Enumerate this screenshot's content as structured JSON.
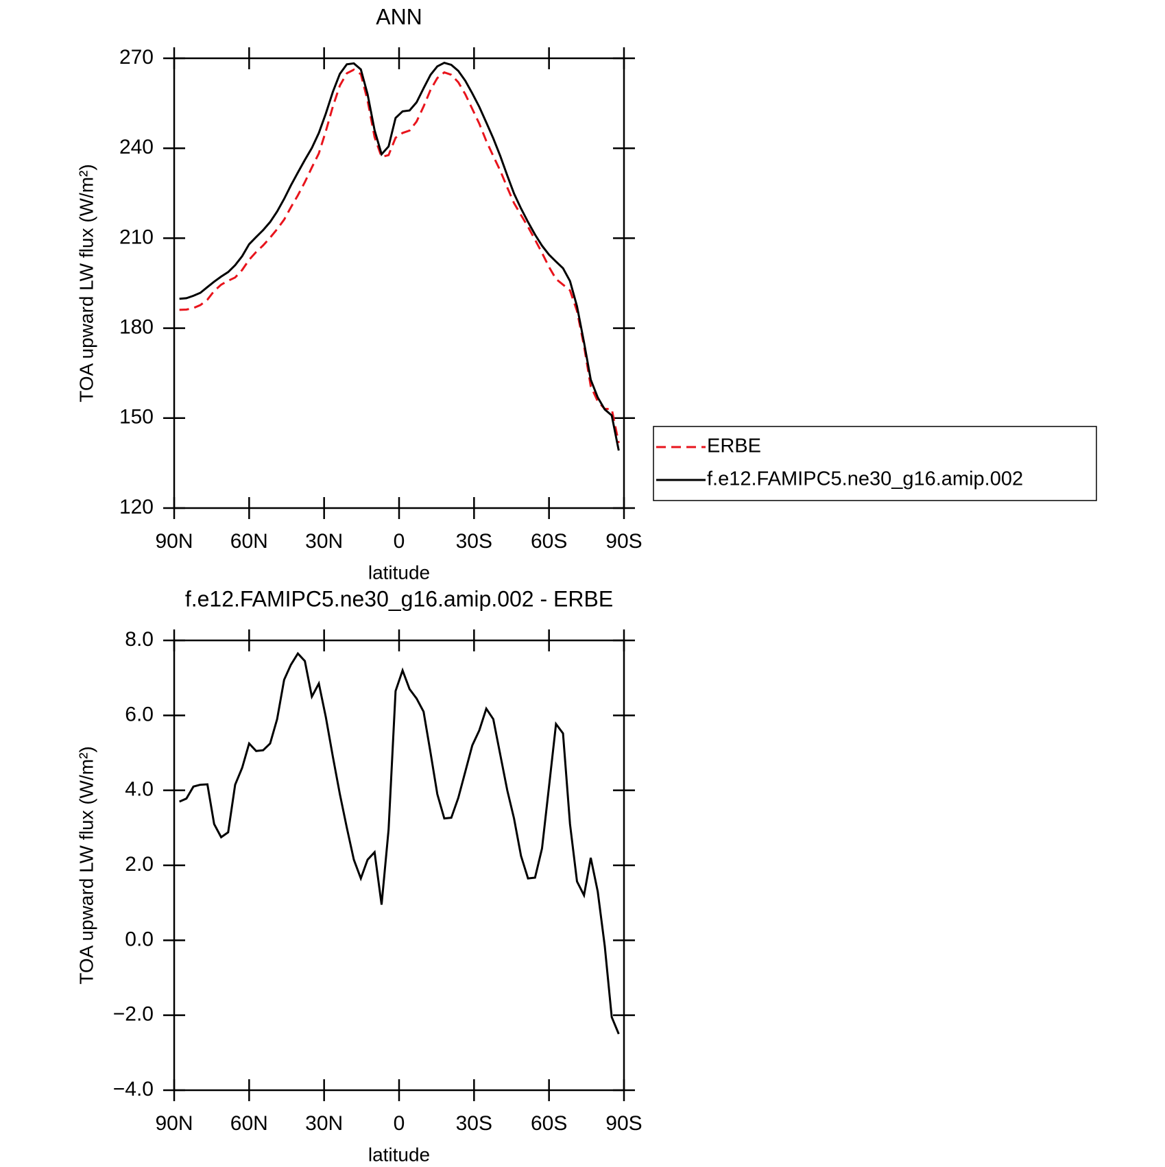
{
  "chart_data": [
    {
      "type": "line",
      "title": "ANN",
      "xlabel": "latitude",
      "ylabel": "TOA upward LW flux (W/m²)",
      "x": [
        87.9,
        85.1,
        82.3,
        79.5,
        76.7,
        74.0,
        71.2,
        68.4,
        65.6,
        62.8,
        60.0,
        57.2,
        54.4,
        51.6,
        48.8,
        46.0,
        43.3,
        40.5,
        37.7,
        34.9,
        32.1,
        29.3,
        26.5,
        23.7,
        20.9,
        18.1,
        15.3,
        12.6,
        9.8,
        7.0,
        4.2,
        1.4,
        -1.4,
        -4.2,
        -7.0,
        -9.8,
        -12.6,
        -15.3,
        -18.1,
        -20.9,
        -23.7,
        -26.5,
        -29.3,
        -32.1,
        -34.9,
        -37.7,
        -40.5,
        -43.3,
        -46.0,
        -48.8,
        -51.6,
        -54.4,
        -57.2,
        -60.0,
        -62.8,
        -65.6,
        -68.4,
        -71.2,
        -74.0,
        -76.7,
        -79.5,
        -82.3,
        -85.1,
        -87.9
      ],
      "series": [
        {
          "name": "ERBE",
          "color": "#e8141c",
          "dashed": true,
          "values": [
            186.1,
            186.2,
            186.7,
            187.7,
            189.5,
            192.4,
            194.5,
            195.8,
            196.9,
            199.4,
            202.8,
            205.4,
            207.6,
            210.2,
            213.0,
            216.2,
            220.3,
            224.3,
            228.7,
            233.6,
            238.3,
            245.7,
            253.9,
            260.9,
            265.0,
            266.2,
            264.7,
            255.9,
            243.7,
            237.1,
            237.7,
            243.5,
            245.1,
            245.9,
            248.9,
            253.9,
            259.5,
            263.4,
            265.3,
            264.5,
            262.0,
            258.0,
            253.1,
            248.2,
            242.4,
            237.4,
            232.5,
            226.9,
            221.7,
            217.7,
            213.8,
            209.5,
            205.1,
            200.4,
            196.4,
            194.5,
            192.6,
            185.7,
            174.1,
            160.6,
            155.6,
            153.1,
            153.0,
            141.7
          ]
        },
        {
          "name": "f.e12.FAMIPC5.ne30_g16.amip.002",
          "color": "#000000",
          "dashed": false,
          "values": [
            189.8,
            190.0,
            190.8,
            191.8,
            193.7,
            195.5,
            197.2,
            198.7,
            201.0,
            204.0,
            208.0,
            210.4,
            212.7,
            215.4,
            218.9,
            223.1,
            227.6,
            231.9,
            236.1,
            240.1,
            245.1,
            251.6,
            258.8,
            264.8,
            268.0,
            268.3,
            266.3,
            258.0,
            246.0,
            238.0,
            240.6,
            250.1,
            252.3,
            252.6,
            255.3,
            260.0,
            264.5,
            267.3,
            268.5,
            267.8,
            265.8,
            262.5,
            258.3,
            253.8,
            248.6,
            243.3,
            237.4,
            230.9,
            224.9,
            219.9,
            215.4,
            211.2,
            207.5,
            204.5,
            202.2,
            200.0,
            195.7,
            187.3,
            175.3,
            162.8,
            156.9,
            152.9,
            150.9,
            139.2
          ]
        }
      ],
      "xlim": [
        90,
        -90
      ],
      "xticks": [
        {
          "value": 90,
          "label": "90N"
        },
        {
          "value": 60,
          "label": "60N"
        },
        {
          "value": 30,
          "label": "30N"
        },
        0,
        {
          "value": -30,
          "label": "30S"
        },
        {
          "value": -60,
          "label": "60S"
        },
        {
          "value": -90,
          "label": "90S"
        }
      ],
      "ylim": [
        120,
        270
      ],
      "yticks": [
        120,
        150,
        180,
        210,
        240,
        270
      ],
      "legend": "right"
    },
    {
      "type": "line",
      "title": "f.e12.FAMIPC5.ne30_g16.amip.002 - ERBE",
      "xlabel": "latitude",
      "ylabel": "TOA upward LW flux (W/m²)",
      "x": [
        87.9,
        85.1,
        82.3,
        79.5,
        76.7,
        74.0,
        71.2,
        68.4,
        65.6,
        62.8,
        60.0,
        57.2,
        54.4,
        51.6,
        48.8,
        46.0,
        43.3,
        40.5,
        37.7,
        34.9,
        32.1,
        29.3,
        26.5,
        23.7,
        20.9,
        18.1,
        15.3,
        12.6,
        9.8,
        7.0,
        4.2,
        1.4,
        -1.4,
        -4.2,
        -7.0,
        -9.8,
        -12.6,
        -15.3,
        -18.1,
        -20.9,
        -23.7,
        -26.5,
        -29.3,
        -32.1,
        -34.9,
        -37.7,
        -40.5,
        -43.3,
        -46.0,
        -48.8,
        -51.6,
        -54.4,
        -57.2,
        -60.0,
        -62.8,
        -65.6,
        -68.4,
        -71.2,
        -74.0,
        -76.7,
        -79.5,
        -82.3,
        -85.1,
        -87.9
      ],
      "series": [
        {
          "color": "#000000",
          "dashed": false,
          "values": [
            3.7,
            3.78,
            4.1,
            4.15,
            4.16,
            3.1,
            2.75,
            2.88,
            4.15,
            4.6,
            5.25,
            5.05,
            5.07,
            5.25,
            5.9,
            6.95,
            7.35,
            7.65,
            7.45,
            6.5,
            6.85,
            5.95,
            4.9,
            3.9,
            3.0,
            2.15,
            1.65,
            2.15,
            2.35,
            0.95,
            2.95,
            6.65,
            7.2,
            6.7,
            6.45,
            6.1,
            5.0,
            3.9,
            3.25,
            3.27,
            3.8,
            4.5,
            5.2,
            5.6,
            6.18,
            5.9,
            4.95,
            4.0,
            3.25,
            2.25,
            1.65,
            1.67,
            2.45,
            4.1,
            5.77,
            5.52,
            3.1,
            1.57,
            1.2,
            2.2,
            1.3,
            -0.15,
            -2.05,
            -2.5
          ]
        }
      ],
      "xlim": [
        90,
        -90
      ],
      "xticks": [
        {
          "value": 90,
          "label": "90N"
        },
        {
          "value": 60,
          "label": "60N"
        },
        {
          "value": 30,
          "label": "30N"
        },
        0,
        {
          "value": -30,
          "label": "30S"
        },
        {
          "value": -60,
          "label": "60S"
        },
        {
          "value": -90,
          "label": "90S"
        }
      ],
      "ylim": [
        -4,
        8
      ],
      "yticks": [
        {
          "value": -4,
          "label": "−4.0"
        },
        {
          "value": -2,
          "label": "−2.0"
        },
        {
          "value": 0,
          "label": "0.0"
        },
        {
          "value": 2,
          "label": "2.0"
        },
        {
          "value": 4,
          "label": "4.0"
        },
        {
          "value": 6,
          "label": "6.0"
        },
        {
          "value": 8,
          "label": "8.0"
        }
      ]
    }
  ]
}
